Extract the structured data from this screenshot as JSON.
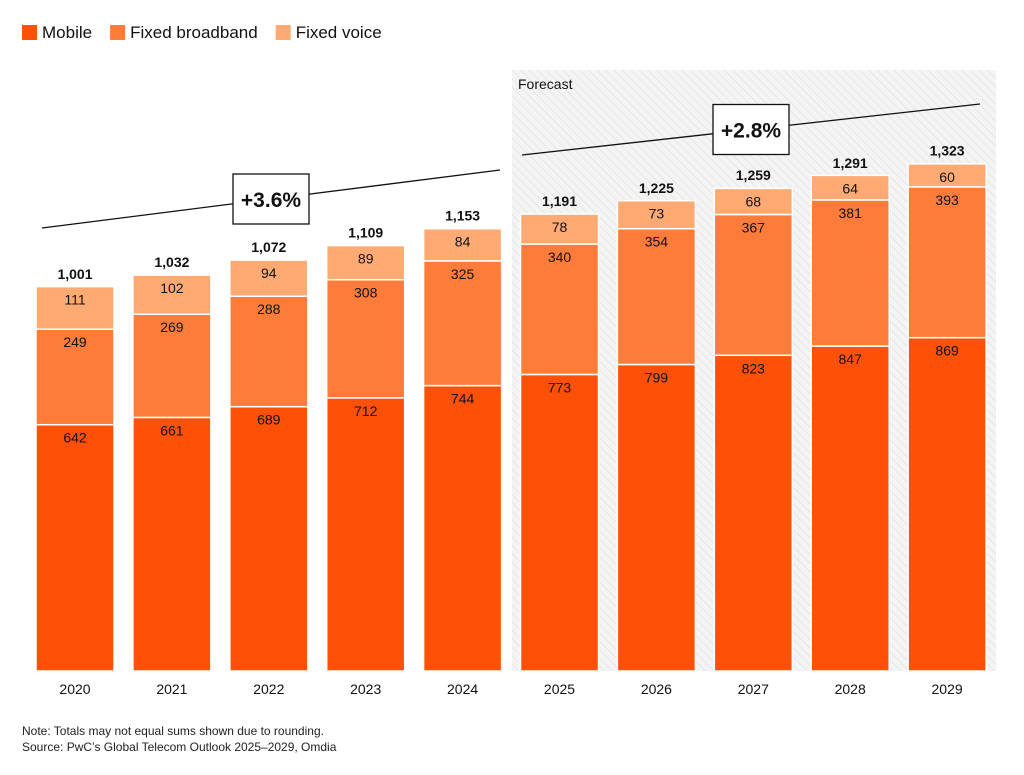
{
  "chart_data": {
    "type": "bar",
    "stacked": true,
    "categories": [
      "2020",
      "2021",
      "2022",
      "2023",
      "2024",
      "2025",
      "2026",
      "2027",
      "2028",
      "2029"
    ],
    "series": [
      {
        "name": "Mobile",
        "color": "#fd5108",
        "values": [
          642,
          661,
          689,
          712,
          744,
          773,
          799,
          823,
          847,
          869
        ]
      },
      {
        "name": "Fixed broadband",
        "color": "#fe7c39",
        "values": [
          249,
          269,
          288,
          308,
          325,
          340,
          354,
          367,
          381,
          393
        ]
      },
      {
        "name": "Fixed voice",
        "color": "#ffaa72",
        "values": [
          111,
          102,
          94,
          89,
          84,
          78,
          73,
          68,
          64,
          60
        ]
      }
    ],
    "totals": [
      "1,001",
      "1,032",
      "1,072",
      "1,109",
      "1,153",
      "1,191",
      "1,225",
      "1,259",
      "1,291",
      "1,323"
    ],
    "total_values": [
      1001,
      1032,
      1072,
      1109,
      1153,
      1191,
      1225,
      1259,
      1291,
      1323
    ],
    "ylim": [
      0,
      1400
    ],
    "grid": false,
    "legend_placement": "top-left",
    "forecast": {
      "label": "Forecast",
      "from": "2025",
      "to": "2029"
    },
    "annotations": [
      {
        "label": "+3.6%",
        "from": "2020",
        "to": "2024"
      },
      {
        "label": "+2.8%",
        "from": "2025",
        "to": "2029"
      }
    ]
  },
  "footer": {
    "note": "Note: Totals may not equal sums shown due to rounding.",
    "source": "Source: PwC’s Global Telecom Outlook 2025–2029, Omdia"
  }
}
